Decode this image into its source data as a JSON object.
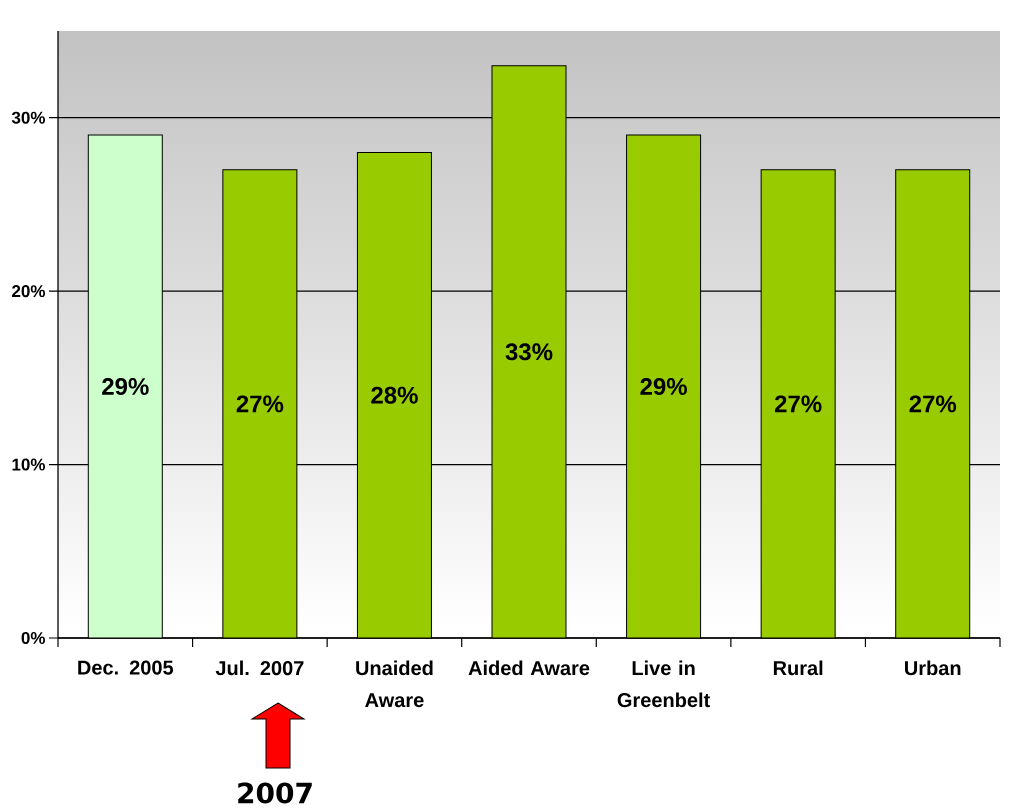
{
  "chart_data": {
    "type": "bar",
    "categories": [
      "Dec. 2005",
      "Jul. 2007",
      "Unaided Aware",
      "Aided Aware",
      "Live in Greenbelt",
      "Rural",
      "Urban"
    ],
    "values": [
      29,
      27,
      28,
      33,
      29,
      27,
      27
    ],
    "colors": [
      "#ccffcc",
      "#99cc00",
      "#99cc00",
      "#99cc00",
      "#99cc00",
      "#99cc00",
      "#99cc00"
    ],
    "value_labels": [
      "29%",
      "27%",
      "28%",
      "33%",
      "29%",
      "27%",
      "27%"
    ],
    "ylim": [
      0,
      35
    ],
    "yticks": [
      {
        "value": 0,
        "label": "0%"
      },
      {
        "value": 10,
        "label": "10%"
      },
      {
        "value": 20,
        "label": "20%"
      },
      {
        "value": 30,
        "label": "30%"
      }
    ],
    "grid": "y",
    "annotations": [
      "2007"
    ]
  }
}
